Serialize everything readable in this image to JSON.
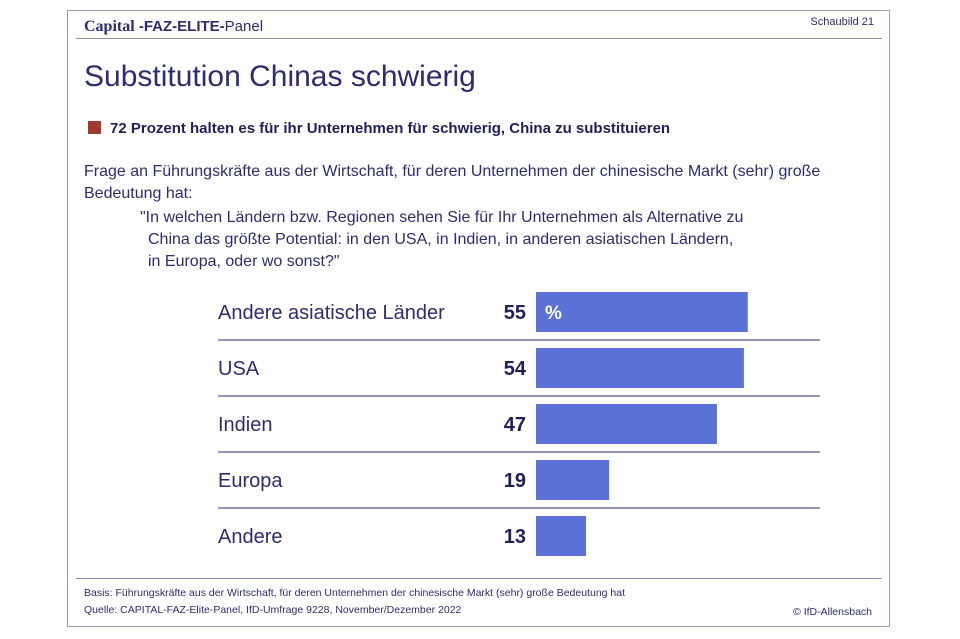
{
  "header": {
    "brand_capital": "Capital",
    "brand_faz": " -FAZ-ELITE-",
    "brand_panel": "Panel",
    "figure_number": "Schaubild 21"
  },
  "title": "Substitution Chinas schwierig",
  "subtitle": "72 Prozent halten es für ihr Unternehmen für schwierig, China zu substituieren",
  "colors": {
    "bar": "#5a72d6",
    "accent_square": "#a03a32",
    "text": "#2b2e6e"
  },
  "question": {
    "intro": "Frage an Führungskräfte aus der Wirtschaft, für deren Unternehmen der chinesische Markt (sehr) große Bedeutung hat:",
    "quote_line1": "\"In welchen Ländern bzw. Regionen sehen Sie für Ihr Unternehmen als Alternative zu",
    "quote_line2": "China das größte Potential: in den USA, in Indien, in anderen asiatischen Ländern,",
    "quote_line3": "in Europa, oder wo sonst?\""
  },
  "chart_data": {
    "type": "bar",
    "orientation": "horizontal",
    "categories": [
      "Andere asiatische Länder",
      "USA",
      "Indien",
      "Europa",
      "Andere"
    ],
    "values": [
      55,
      54,
      47,
      19,
      13
    ],
    "unit": "%",
    "title": "",
    "xlabel": "",
    "ylabel": "",
    "xlim": [
      0,
      100
    ],
    "grid": false,
    "legend": "none"
  },
  "footer": {
    "basis": "Basis: Führungskräfte aus der Wirtschaft, für deren Unternehmen der chinesische Markt (sehr) große Bedeutung hat",
    "source": "Quelle: CAPITAL-FAZ-Elite-Panel, IfD-Umfrage 9228, November/Dezember 2022",
    "copyright": "© IfD-Allensbach"
  }
}
